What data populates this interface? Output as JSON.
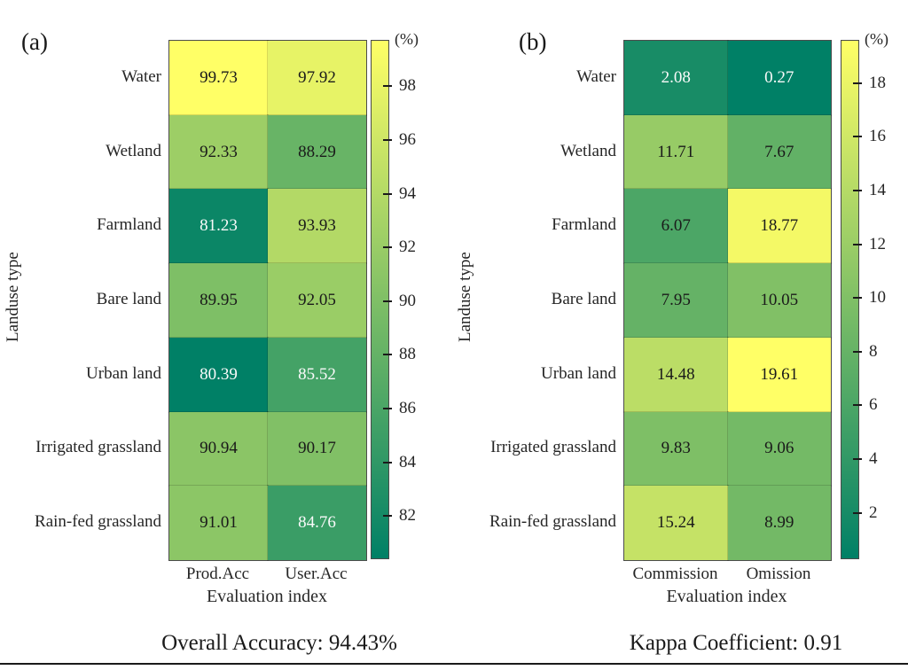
{
  "figure": {
    "background": "#ffffff",
    "text_color": "#1a1a1a",
    "bottom_rule_color": "#1a1a1a"
  },
  "chart_data": [
    {
      "type": "heatmap",
      "panel_tag": "(a)",
      "ylabel": "Landuse type",
      "xlabel": "Evaluation index",
      "unit_label": "(%)",
      "categories": [
        "Water",
        "Wetland",
        "Farmland",
        "Bare land",
        "Urban land",
        "Irrigated grassland",
        "Rain-fed grassland"
      ],
      "columns": [
        "Prod.Acc",
        "User.Acc"
      ],
      "values": [
        [
          99.73,
          97.92
        ],
        [
          92.33,
          88.29
        ],
        [
          81.23,
          93.93
        ],
        [
          89.95,
          92.05
        ],
        [
          80.39,
          85.52
        ],
        [
          90.94,
          90.17
        ],
        [
          91.01,
          84.76
        ]
      ],
      "scale": {
        "min": 80.39,
        "max": 99.73,
        "ticks": [
          98,
          96,
          94,
          92,
          90,
          88,
          86,
          84,
          82
        ]
      },
      "colormap": {
        "name": "summer",
        "low": "#008066",
        "high": "#ffff66",
        "dark_text": "#1a1a1a",
        "light_text": "#fafafa"
      },
      "footer": "Overall Accuracy: 94.43%",
      "legend_position": "right-colorbar",
      "grid": false
    },
    {
      "type": "heatmap",
      "panel_tag": "(b)",
      "ylabel": "Landuse type",
      "xlabel": "Evaluation index",
      "unit_label": "(%)",
      "categories": [
        "Water",
        "Wetland",
        "Farmland",
        "Bare land",
        "Urban land",
        "Irrigated grassland",
        "Rain-fed grassland"
      ],
      "columns": [
        "Commission",
        "Omission"
      ],
      "values": [
        [
          2.08,
          0.27
        ],
        [
          11.71,
          7.67
        ],
        [
          6.07,
          18.77
        ],
        [
          7.95,
          10.05
        ],
        [
          14.48,
          19.61
        ],
        [
          9.83,
          9.06
        ],
        [
          15.24,
          8.99
        ]
      ],
      "scale": {
        "min": 0.27,
        "max": 19.61,
        "ticks": [
          18,
          16,
          14,
          12,
          10,
          8,
          6,
          4,
          2
        ]
      },
      "colormap": {
        "name": "summer",
        "low": "#008066",
        "high": "#ffff66",
        "dark_text": "#1a1a1a",
        "light_text": "#fafafa"
      },
      "footer": "Kappa Coefficient: 0.91",
      "legend_position": "right-colorbar",
      "grid": false
    }
  ]
}
